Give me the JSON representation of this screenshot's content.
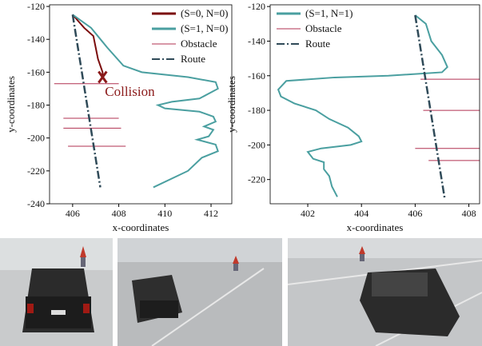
{
  "chart_data": [
    {
      "type": "line",
      "xlabel": "x-coordinates",
      "ylabel": "y-coordinates",
      "xlim": [
        405.0,
        412.9
      ],
      "xticks": [
        406,
        408,
        410,
        412
      ],
      "ylim": [
        -240,
        -119
      ],
      "yticks": [
        -240,
        -220,
        -200,
        -180,
        -160,
        -140,
        -120
      ],
      "legend": "upper right",
      "series": [
        {
          "name": "(S=0, N=0)",
          "color": "#7b0c0c",
          "linestyle": "solid",
          "linewidth": 2,
          "x": [
            406.0,
            406.5,
            406.9,
            407.0,
            407.1,
            407.3,
            407.3
          ],
          "values": [
            -125,
            -133,
            -138,
            -145,
            -152,
            -160,
            -163
          ]
        },
        {
          "name": "(S=1, N=0)",
          "color": "#4a9fa0",
          "linestyle": "solid",
          "linewidth": 2,
          "x": [
            406.0,
            406.8,
            407.5,
            408.2,
            409.0,
            411.0,
            412.2,
            412.3,
            411.5,
            410.3,
            409.7,
            410.0,
            411.5,
            412.1,
            412.2,
            411.7,
            412.1,
            411.9,
            411.4,
            412.2,
            412.3,
            411.6,
            411.0,
            409.5
          ],
          "values": [
            -125,
            -133,
            -145,
            -156,
            -160,
            -163,
            -166,
            -170,
            -176,
            -178,
            -180,
            -182,
            -184,
            -187,
            -190,
            -193,
            -195,
            -199,
            -201,
            -204,
            -208,
            -212,
            -220,
            -230
          ]
        },
        {
          "name": "Obstacle",
          "color": "#b03050",
          "linestyle": "solid",
          "linewidth": 1,
          "x": [
            405.2,
            408.0,
            null,
            405.6,
            408.0,
            null,
            405.6,
            408.1,
            null,
            405.8,
            408.3
          ],
          "values": [
            -167,
            -167,
            null,
            -188,
            -188,
            null,
            -194,
            -194,
            null,
            -205,
            -205
          ]
        },
        {
          "name": "Route",
          "color": "#2f4a58",
          "linestyle": "dashdot",
          "linewidth": 2.5,
          "x": [
            406.0,
            407.2
          ],
          "values": [
            -125,
            -230
          ]
        }
      ],
      "marker": {
        "x": 407.3,
        "y": -163,
        "color": "#8b1a1a"
      },
      "annotation": {
        "text": "Collision",
        "x": 407.4,
        "y": -172,
        "color": "#8b1a1a"
      }
    },
    {
      "type": "line",
      "xlabel": "x-coordinates",
      "ylabel": "y-coordinates",
      "xlim": [
        400.6,
        408.4
      ],
      "xticks": [
        402,
        404,
        406,
        408
      ],
      "ylim": [
        -234,
        -119
      ],
      "yticks": [
        -220,
        -200,
        -180,
        -160,
        -140,
        -120
      ],
      "legend": "upper left",
      "series": [
        {
          "name": "(S=1, N=1)",
          "color": "#4a9fa0",
          "linestyle": "solid",
          "linewidth": 2,
          "x": [
            406.0,
            406.4,
            406.6,
            407.0,
            407.2,
            407.0,
            405.0,
            403.0,
            401.2,
            400.9,
            401.0,
            401.5,
            402.3,
            402.8,
            403.5,
            403.9,
            404.0,
            403.6,
            402.5,
            402.0,
            402.2,
            402.6,
            402.6,
            402.8,
            402.9,
            403.1
          ],
          "values": [
            -125,
            -130,
            -140,
            -148,
            -155,
            -158,
            -160,
            -161,
            -163,
            -168,
            -172,
            -176,
            -180,
            -185,
            -190,
            -195,
            -198,
            -200,
            -202,
            -204,
            -208,
            -210,
            -214,
            -218,
            -224,
            -230
          ]
        },
        {
          "name": "Obstacle",
          "color": "#b03050",
          "linestyle": "solid",
          "linewidth": 1,
          "x": [
            406.2,
            408.4,
            null,
            406.3,
            408.4,
            null,
            406.0,
            408.4,
            null,
            406.5,
            408.4
          ],
          "values": [
            -162,
            -162,
            null,
            -180,
            -180,
            null,
            -202,
            -202,
            null,
            -209,
            -209
          ]
        },
        {
          "name": "Route",
          "color": "#2f4a58",
          "linestyle": "dashdot",
          "linewidth": 2.5,
          "x": [
            406.0,
            407.1
          ],
          "values": [
            -125,
            -231
          ]
        }
      ]
    }
  ]
}
